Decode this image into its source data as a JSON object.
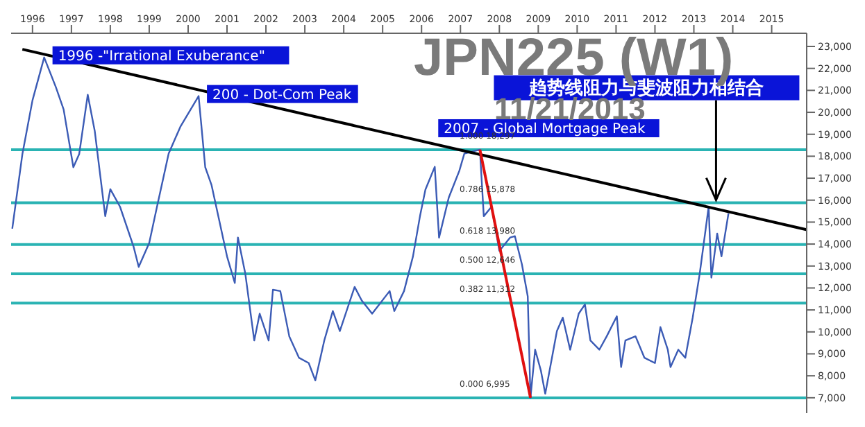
{
  "chart_data": {
    "type": "line",
    "title": "JPN225 (W1)",
    "subtitle": "11/21/2013",
    "xlim": [
      1995.45,
      2015.9
    ],
    "xticks": [
      1996,
      1997,
      1998,
      1999,
      2000,
      2001,
      2002,
      2003,
      2004,
      2005,
      2006,
      2007,
      2008,
      2009,
      2010,
      2011,
      2012,
      2013,
      2014,
      2015
    ],
    "ylim": [
      6300,
      23600
    ],
    "yticks": [
      {
        "value": 7000,
        "label": "7,000"
      },
      {
        "value": 8000,
        "label": "8,000"
      },
      {
        "value": 9000,
        "label": "9,000"
      },
      {
        "value": 10000,
        "label": "10,000"
      },
      {
        "value": 11000,
        "label": "11,000"
      },
      {
        "value": 12000,
        "label": "12,000"
      },
      {
        "value": 13000,
        "label": "13,000"
      },
      {
        "value": 14000,
        "label": "14,000"
      },
      {
        "value": 15000,
        "label": "15,000"
      },
      {
        "value": 16000,
        "label": "16,000"
      },
      {
        "value": 17000,
        "label": "17,000"
      },
      {
        "value": 18000,
        "label": "18,000"
      },
      {
        "value": 19000,
        "label": "19,000"
      },
      {
        "value": 20000,
        "label": "20,000"
      },
      {
        "value": 21000,
        "label": "21,000"
      },
      {
        "value": 22000,
        "label": "22,000"
      },
      {
        "value": 23000,
        "label": "23,000"
      }
    ],
    "grid": false,
    "legend": false,
    "marker": "none",
    "line_style": "solid",
    "series": [
      {
        "color": "#3b5bb5",
        "x": [
          1995.48,
          1995.74,
          1996.0,
          1996.3,
          1996.6,
          1996.8,
          1997.05,
          1997.2,
          1997.42,
          1997.6,
          1997.87,
          1998.0,
          1998.25,
          1998.6,
          1998.73,
          1999.0,
          1999.2,
          1999.5,
          1999.8,
          2000.27,
          2000.44,
          2000.6,
          2000.8,
          2001.0,
          2001.2,
          2001.28,
          2001.47,
          2001.7,
          2001.84,
          2002.07,
          2002.18,
          2002.37,
          2002.6,
          2002.85,
          2003.1,
          2003.27,
          2003.5,
          2003.72,
          2003.9,
          2004.28,
          2004.46,
          2004.73,
          2005.18,
          2005.3,
          2005.55,
          2005.78,
          2005.96,
          2006.1,
          2006.34,
          2006.45,
          2006.7,
          2006.97,
          2007.1,
          2007.5,
          2007.6,
          2007.8,
          2008.0,
          2008.28,
          2008.4,
          2008.58,
          2008.73,
          2008.8,
          2008.92,
          2009.07,
          2009.18,
          2009.48,
          2009.63,
          2009.82,
          2010.04,
          2010.2,
          2010.34,
          2010.57,
          2010.76,
          2011.02,
          2011.13,
          2011.24,
          2011.5,
          2011.73,
          2012.0,
          2012.14,
          2012.33,
          2012.4,
          2012.6,
          2012.78,
          2012.97,
          2013.15,
          2013.38,
          2013.45,
          2013.6,
          2013.71,
          2013.89
        ],
        "values": [
          14700,
          18100,
          20550,
          22500,
          21150,
          20130,
          17500,
          18100,
          20800,
          19150,
          15270,
          16500,
          15700,
          13870,
          12960,
          14050,
          15700,
          18120,
          19340,
          20740,
          17500,
          16700,
          15080,
          13440,
          12230,
          14300,
          12650,
          9610,
          10830,
          9610,
          11920,
          11860,
          9800,
          8820,
          8580,
          7790,
          9610,
          10950,
          10040,
          12050,
          11440,
          10830,
          11860,
          10950,
          11860,
          13440,
          15270,
          16480,
          17520,
          14290,
          16120,
          17330,
          18120,
          18300,
          15270,
          15700,
          13690,
          14300,
          14360,
          13080,
          11620,
          7000,
          9190,
          8220,
          7180,
          10040,
          10650,
          9190,
          10830,
          11250,
          9610,
          9190,
          9800,
          10710,
          8400,
          9610,
          9800,
          8820,
          8580,
          10220,
          9190,
          8400,
          9190,
          8820,
          10650,
          12650,
          15700,
          12470,
          14480,
          13440,
          15400
        ]
      },
      {
        "color": "#000000",
        "x": [
          1995.74,
          2015.89
        ],
        "values": [
          22870,
          14660
        ]
      },
      {
        "color": "#e01010",
        "x": [
          2007.5,
          2008.8
        ],
        "values": [
          18300,
          7000
        ]
      }
    ],
    "ref_lines": [
      {
        "axis": "y",
        "value": 18297,
        "label": "1.000 18,297",
        "color": "#2ab3b3"
      },
      {
        "axis": "y",
        "value": 15878,
        "label": "0.786 15,878",
        "color": "#2ab3b3"
      },
      {
        "axis": "y",
        "value": 13980,
        "label": "0.618 13,980",
        "color": "#2ab3b3"
      },
      {
        "axis": "y",
        "value": 12646,
        "label": "0.500 12,646",
        "color": "#2ab3b3"
      },
      {
        "axis": "y",
        "value": 11312,
        "label": "0.382 11,312",
        "color": "#2ab3b3"
      },
      {
        "axis": "y",
        "value": 6995,
        "label": "0.000 6,995",
        "color": "#2ab3b3"
      }
    ],
    "annotations": [
      {
        "text": "1996 -\"Irrational Exuberance\"",
        "x": 1996.3,
        "y": 22500
      },
      {
        "text": "200 - Dot-Com Peak",
        "x": 2000.27,
        "y": 20740
      },
      {
        "text": "2007 - Global Mortgage Peak",
        "x": 2007.5,
        "y": 18297
      },
      {
        "text": "趋势线阻力与斐波阻力相结合",
        "x": 2013.57,
        "y": 15878
      }
    ]
  }
}
